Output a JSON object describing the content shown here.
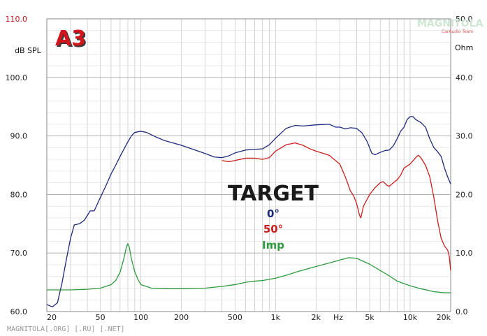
{
  "branding": {
    "badge_text": "A3",
    "logo_main": "MAGNITOLA",
    "logo_sub": "CarAudio Team",
    "footer_watermark": "MAGNITOLA[.ORG] [.RU] [.NET]"
  },
  "chart_data": {
    "type": "line",
    "title": "",
    "left_axis": {
      "unit_label": "dB SPL",
      "range": [
        60,
        110
      ],
      "ticks": [
        "60.0",
        "70.0",
        "80.0",
        "90.0",
        "100.0",
        "110.0"
      ]
    },
    "right_axis": {
      "unit_label": "Ohm",
      "range": [
        0,
        50
      ],
      "ticks": [
        "0.0",
        "10.0",
        "20.0",
        "30.0",
        "40.0",
        "50.0"
      ]
    },
    "x_axis": {
      "scale": "log",
      "range": [
        20,
        20000
      ],
      "unit_label": "Hz",
      "tick_labels": [
        {
          "f": 20,
          "label": "20"
        },
        {
          "f": 50,
          "label": "50"
        },
        {
          "f": 100,
          "label": "100"
        },
        {
          "f": 200,
          "label": "200"
        },
        {
          "f": 500,
          "label": "500"
        },
        {
          "f": 1000,
          "label": "1k"
        },
        {
          "f": 2000,
          "label": "2k"
        },
        {
          "f": 5000,
          "label": "5k"
        },
        {
          "f": 10000,
          "label": "10k"
        },
        {
          "f": 20000,
          "label": "20k"
        }
      ]
    },
    "grid": true,
    "legend": {
      "title": "TARGET",
      "placement": "center",
      "items": [
        "0°",
        "50°",
        "Imp"
      ]
    },
    "series": [
      {
        "name": "0°",
        "axis": "left",
        "color": "#1d2a7a",
        "points": [
          [
            20,
            61.2
          ],
          [
            22,
            60.8
          ],
          [
            24,
            61.5
          ],
          [
            26,
            65
          ],
          [
            28,
            69
          ],
          [
            30,
            72.5
          ],
          [
            32,
            74.8
          ],
          [
            35,
            75
          ],
          [
            38,
            75.6
          ],
          [
            42,
            77.2
          ],
          [
            45,
            77.2
          ],
          [
            50,
            79.5
          ],
          [
            55,
            81.5
          ],
          [
            60,
            83.5
          ],
          [
            65,
            85
          ],
          [
            70,
            86.5
          ],
          [
            75,
            87.8
          ],
          [
            80,
            89
          ],
          [
            85,
            90
          ],
          [
            90,
            90.6
          ],
          [
            100,
            90.8
          ],
          [
            110,
            90.6
          ],
          [
            130,
            89.8
          ],
          [
            150,
            89.2
          ],
          [
            200,
            88.4
          ],
          [
            300,
            87
          ],
          [
            350,
            86.4
          ],
          [
            400,
            86.3
          ],
          [
            450,
            86.6
          ],
          [
            500,
            87.1
          ],
          [
            600,
            87.6
          ],
          [
            700,
            87.7
          ],
          [
            800,
            87.8
          ],
          [
            900,
            88.5
          ],
          [
            1000,
            89.6
          ],
          [
            1200,
            91.3
          ],
          [
            1400,
            91.8
          ],
          [
            1600,
            91.7
          ],
          [
            1800,
            91.8
          ],
          [
            2000,
            91.9
          ],
          [
            2500,
            92
          ],
          [
            2800,
            91.5
          ],
          [
            3000,
            91.5
          ],
          [
            3300,
            91.2
          ],
          [
            3600,
            91.4
          ],
          [
            4000,
            91.3
          ],
          [
            4400,
            90.5
          ],
          [
            4800,
            89
          ],
          [
            5200,
            87
          ],
          [
            5500,
            86.8
          ],
          [
            6000,
            87.2
          ],
          [
            6500,
            87.5
          ],
          [
            7000,
            87.6
          ],
          [
            7500,
            88.3
          ],
          [
            8000,
            89.5
          ],
          [
            8500,
            90.8
          ],
          [
            9000,
            91.5
          ],
          [
            9500,
            92.8
          ],
          [
            10000,
            93.3
          ],
          [
            10500,
            93.3
          ],
          [
            11000,
            92.8
          ],
          [
            12000,
            92.3
          ],
          [
            13000,
            91.5
          ],
          [
            14000,
            89.5
          ],
          [
            15000,
            88
          ],
          [
            16000,
            87.3
          ],
          [
            17000,
            86.5
          ],
          [
            18000,
            84.5
          ],
          [
            19000,
            83
          ],
          [
            20000,
            81.8
          ]
        ]
      },
      {
        "name": "50°",
        "axis": "left",
        "color": "#c8201e",
        "points": [
          [
            400,
            85.8
          ],
          [
            450,
            85.6
          ],
          [
            500,
            85.8
          ],
          [
            600,
            86.2
          ],
          [
            700,
            86.2
          ],
          [
            800,
            86
          ],
          [
            900,
            86.3
          ],
          [
            1000,
            87.4
          ],
          [
            1200,
            88.5
          ],
          [
            1400,
            88.8
          ],
          [
            1600,
            88.4
          ],
          [
            1800,
            87.8
          ],
          [
            2000,
            87.4
          ],
          [
            2500,
            86.7
          ],
          [
            3000,
            85.2
          ],
          [
            3300,
            83
          ],
          [
            3600,
            80.6
          ],
          [
            3800,
            79.8
          ],
          [
            4000,
            78.5
          ],
          [
            4200,
            76.5
          ],
          [
            4300,
            76
          ],
          [
            4500,
            78
          ],
          [
            5000,
            80
          ],
          [
            5500,
            81.2
          ],
          [
            6000,
            82
          ],
          [
            6300,
            82.2
          ],
          [
            6700,
            81.6
          ],
          [
            7000,
            81.4
          ],
          [
            7500,
            82
          ],
          [
            8000,
            82.5
          ],
          [
            8500,
            83.3
          ],
          [
            9000,
            84.5
          ],
          [
            10000,
            85.2
          ],
          [
            11000,
            86.3
          ],
          [
            11500,
            86.7
          ],
          [
            12000,
            86.3
          ],
          [
            13000,
            85
          ],
          [
            14000,
            83
          ],
          [
            15000,
            79.5
          ],
          [
            16000,
            75.5
          ],
          [
            17000,
            72.5
          ],
          [
            18000,
            71.2
          ],
          [
            19000,
            70.5
          ],
          [
            19500,
            69.5
          ],
          [
            20000,
            67
          ]
        ]
      },
      {
        "name": "Imp",
        "axis": "right",
        "color": "#2e9a3e",
        "points": [
          [
            20,
            3.7
          ],
          [
            30,
            3.7
          ],
          [
            40,
            3.8
          ],
          [
            50,
            4
          ],
          [
            60,
            4.6
          ],
          [
            65,
            5.3
          ],
          [
            70,
            6.7
          ],
          [
            75,
            9.2
          ],
          [
            78,
            11
          ],
          [
            80,
            11.6
          ],
          [
            82,
            11
          ],
          [
            85,
            9
          ],
          [
            90,
            6.8
          ],
          [
            95,
            5.5
          ],
          [
            100,
            4.6
          ],
          [
            120,
            4
          ],
          [
            150,
            3.9
          ],
          [
            200,
            3.9
          ],
          [
            300,
            4
          ],
          [
            400,
            4.3
          ],
          [
            500,
            4.6
          ],
          [
            600,
            5
          ],
          [
            700,
            5.2
          ],
          [
            800,
            5.3
          ],
          [
            1000,
            5.7
          ],
          [
            1200,
            6.2
          ],
          [
            1500,
            6.9
          ],
          [
            2000,
            7.7
          ],
          [
            2500,
            8.3
          ],
          [
            3000,
            8.8
          ],
          [
            3500,
            9.2
          ],
          [
            4000,
            9.1
          ],
          [
            5000,
            8.1
          ],
          [
            6000,
            7
          ],
          [
            7000,
            6.1
          ],
          [
            8000,
            5.2
          ],
          [
            10000,
            4.4
          ],
          [
            12000,
            3.9
          ],
          [
            15000,
            3.4
          ],
          [
            18000,
            3.2
          ],
          [
            20000,
            3.2
          ]
        ]
      }
    ]
  }
}
